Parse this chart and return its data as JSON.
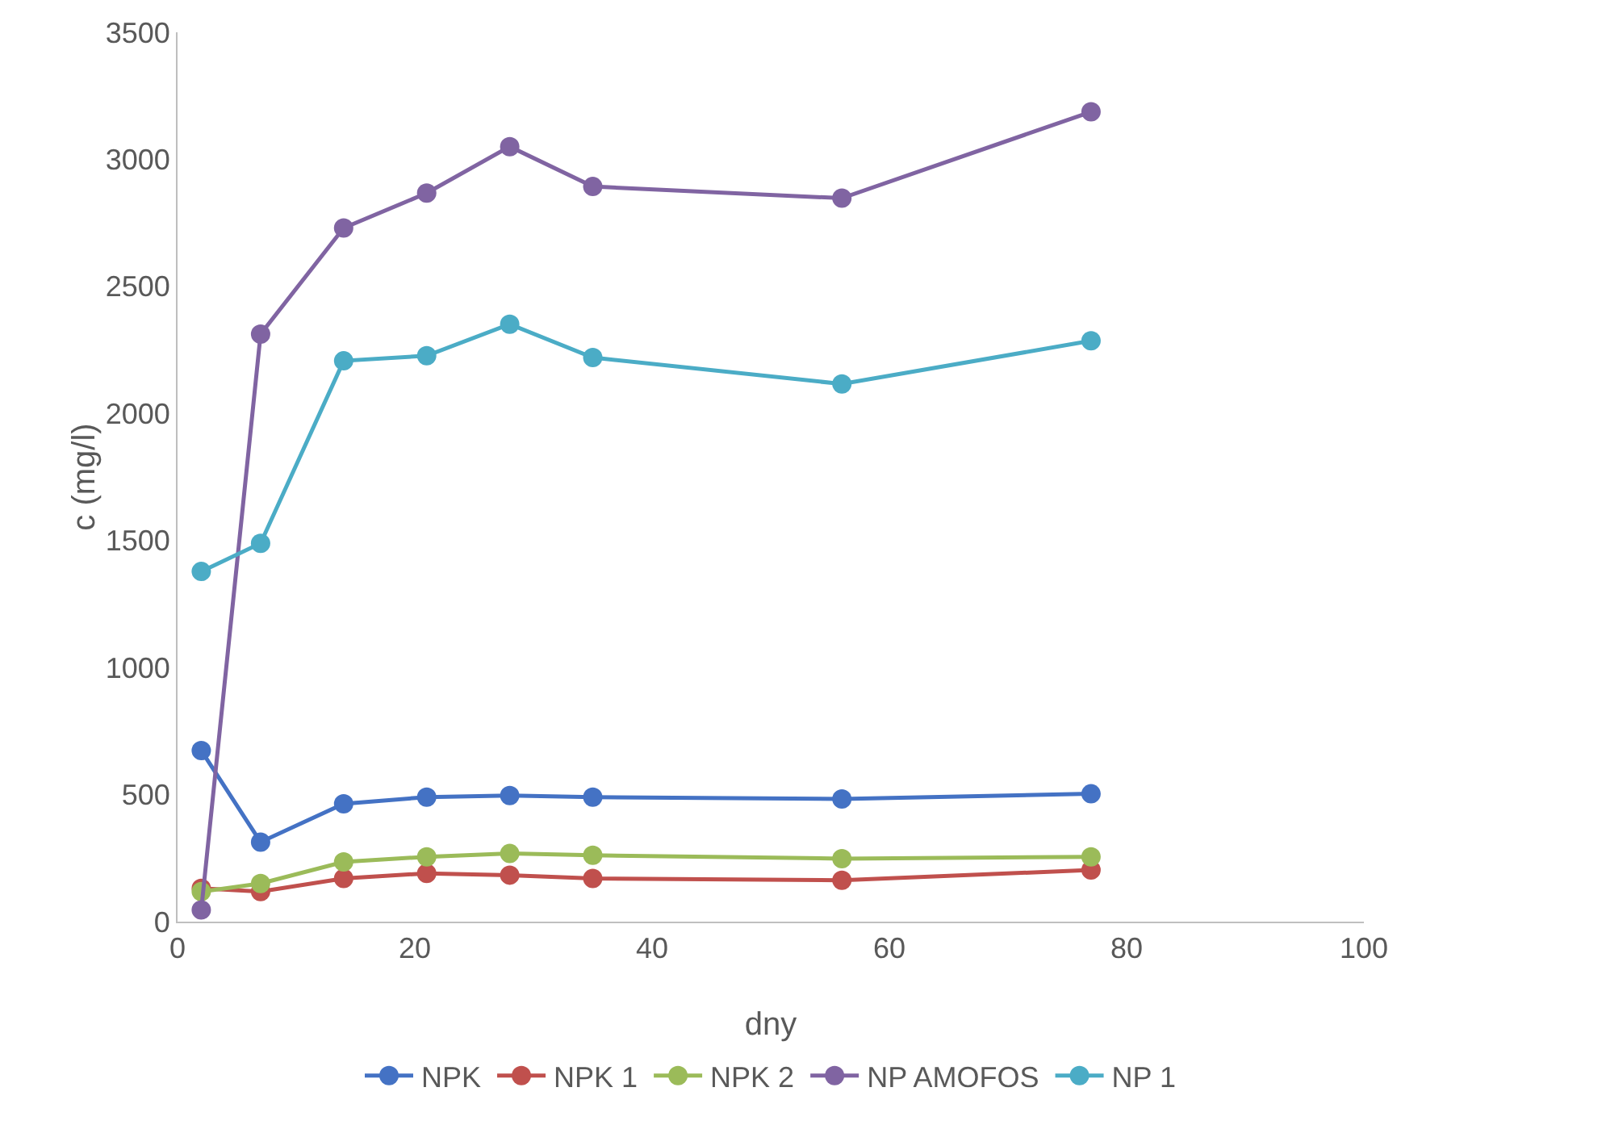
{
  "chart_data": {
    "type": "line",
    "xlabel": "dny",
    "ylabel": "c (mg/l)",
    "x": [
      2,
      7,
      14,
      21,
      28,
      35,
      56,
      77
    ],
    "xlim": [
      0,
      100
    ],
    "xticks": [
      0,
      20,
      40,
      60,
      80,
      100
    ],
    "ylim": [
      0,
      3500
    ],
    "yticks": [
      0,
      500,
      1000,
      1500,
      2000,
      2500,
      3000,
      3500
    ],
    "grid": false,
    "legend": "bottom",
    "marker": "circle",
    "line_style": "solid",
    "series": [
      {
        "name": "NPK",
        "color": "#4472c4",
        "values": [
          673,
          313,
          464,
          490,
          496,
          490,
          483,
          503
        ]
      },
      {
        "name": "NPK 1",
        "color": "#c0504d",
        "values": [
          131,
          118,
          170,
          190,
          183,
          170,
          163,
          203
        ]
      },
      {
        "name": "NPK 2",
        "color": "#9bbb59",
        "values": [
          118,
          150,
          235,
          255,
          268,
          261,
          248,
          255
        ]
      },
      {
        "name": "NP AMOFOS",
        "color": "#8064a2",
        "values": [
          46,
          2312,
          2730,
          2867,
          3050,
          2893,
          2847,
          3187
        ]
      },
      {
        "name": "NP 1",
        "color": "#4bacc6",
        "values": [
          1378,
          1489,
          2207,
          2227,
          2351,
          2220,
          2116,
          2286
        ]
      }
    ]
  }
}
